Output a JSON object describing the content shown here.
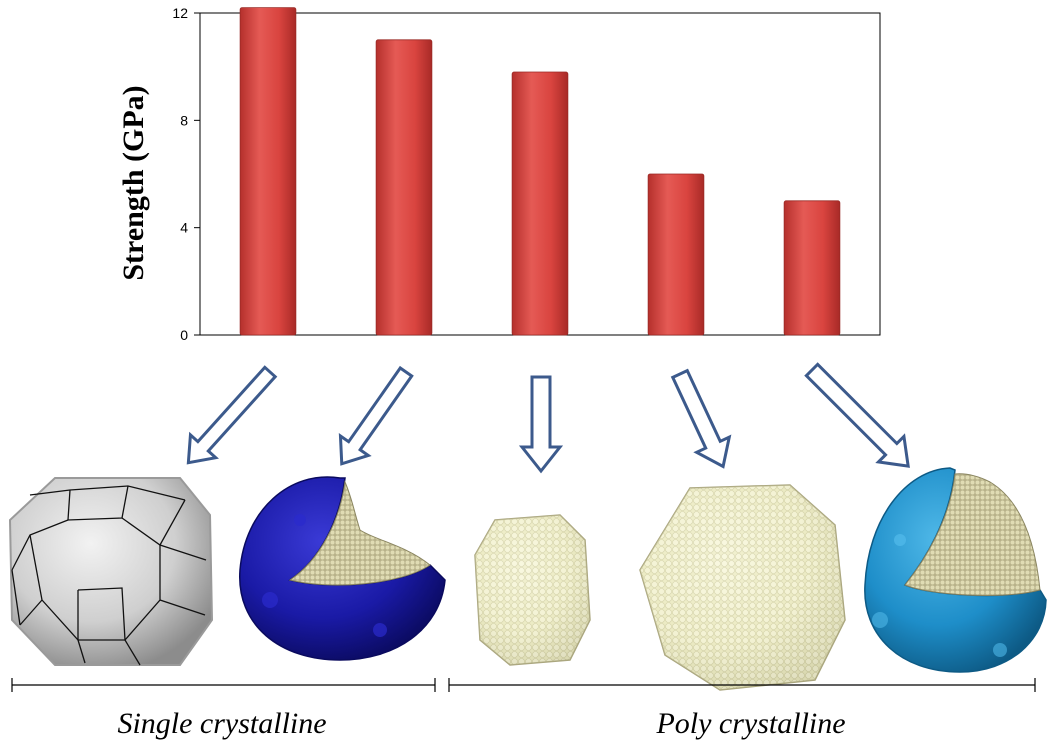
{
  "chart_data": {
    "type": "bar",
    "categories": [
      "",
      "",
      "",
      "",
      ""
    ],
    "values": [
      12.2,
      11.0,
      9.8,
      6.0,
      5.0
    ],
    "ylabel": "Strength (GPa)",
    "xlabel": "",
    "ylim": [
      0,
      12
    ],
    "yticks": [
      "0",
      "4",
      "8",
      "12"
    ],
    "ytick_values": [
      0,
      4,
      8,
      12
    ],
    "grid": false,
    "bar_color": "#d9443f"
  },
  "groups": [
    {
      "label": "Single crystalline"
    },
    {
      "label": "Poly crystalline"
    }
  ],
  "particles": [
    {
      "icon": "truncated-octahedron-icon",
      "color": "#cfcfcf"
    },
    {
      "icon": "cutaway-shell-icon",
      "color": "#1a1aa6"
    },
    {
      "icon": "small-cluster-icon",
      "color": "#ecebc4"
    },
    {
      "icon": "large-cluster-icon",
      "color": "#ecebc4"
    },
    {
      "icon": "cutaway-shell-icon",
      "color": "#1e8ec9"
    }
  ],
  "arrow_color": "#3c5a8c"
}
